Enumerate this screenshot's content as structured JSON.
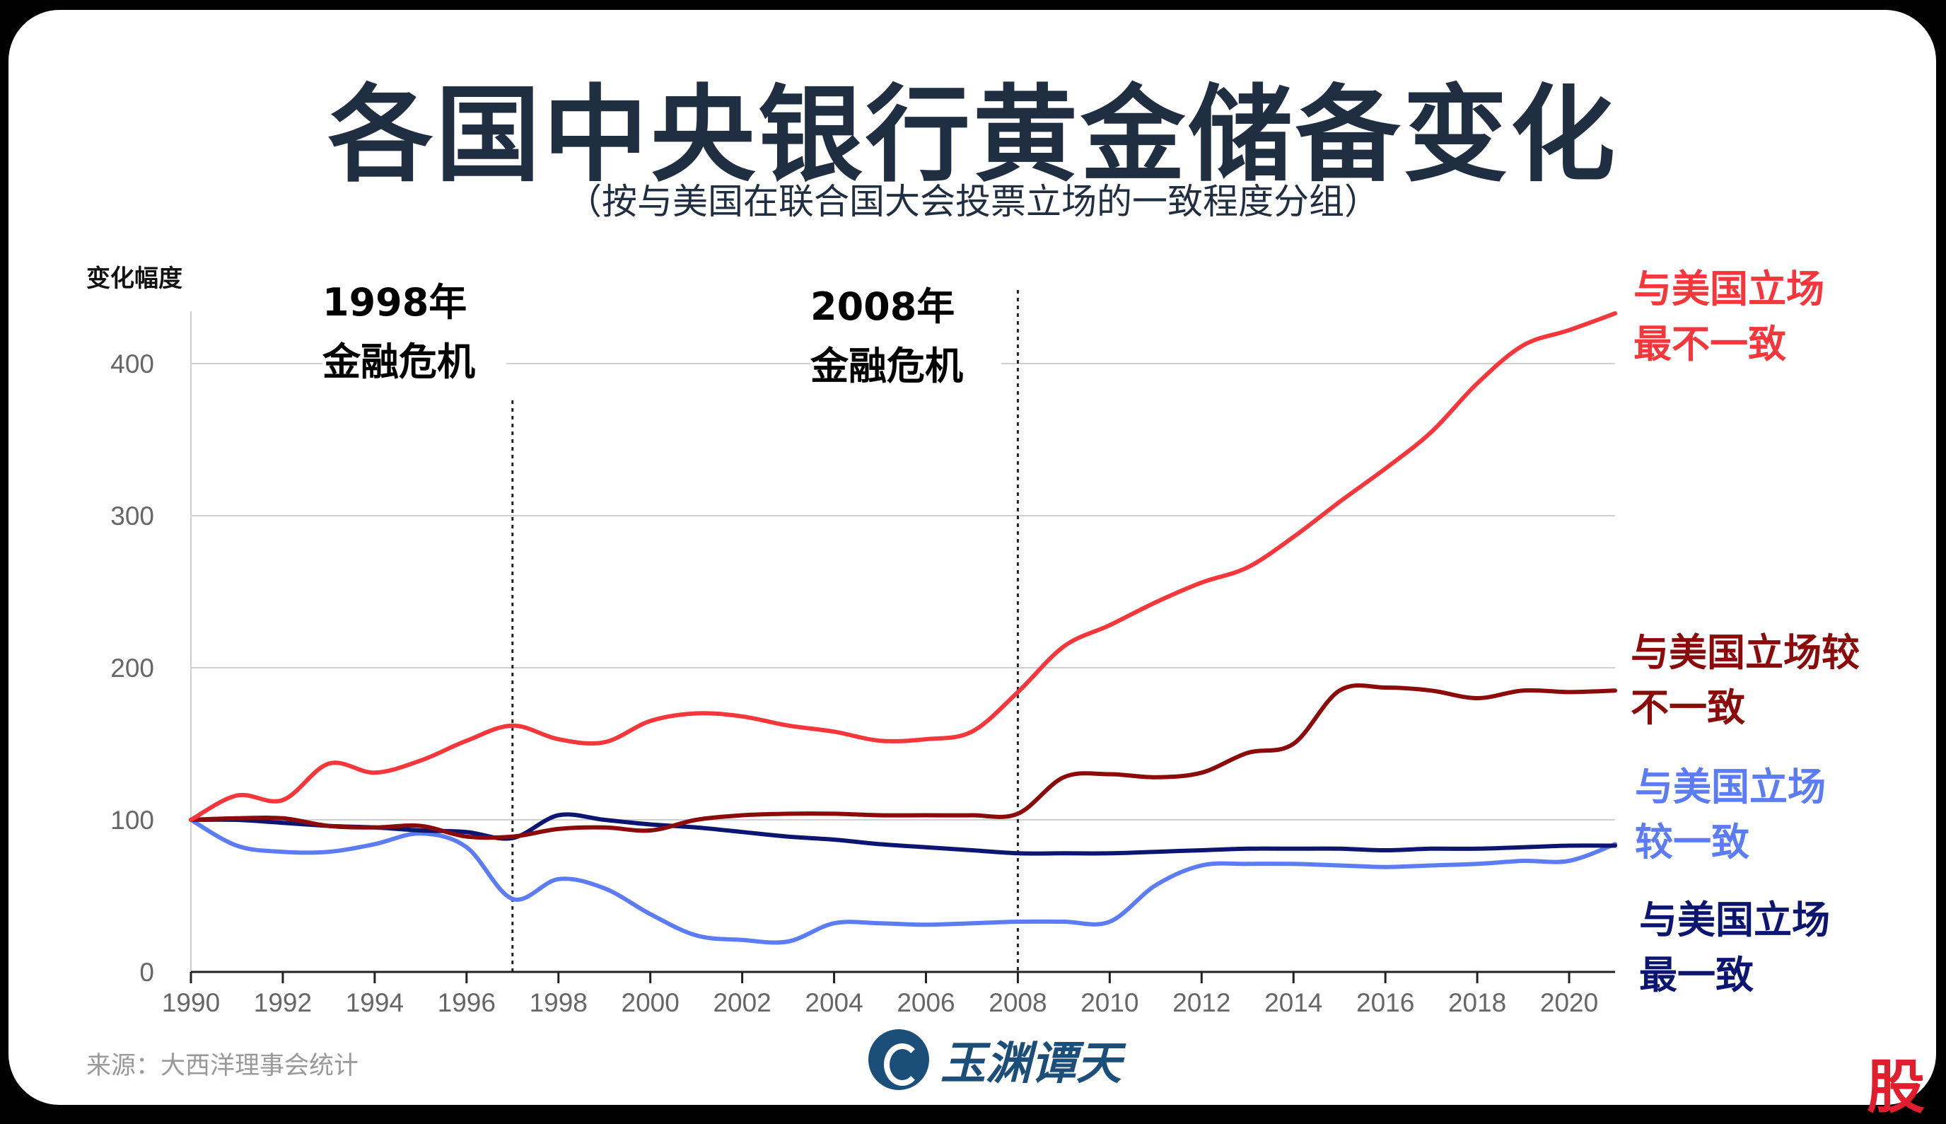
{
  "title": "各国中央银行黄金储备变化",
  "subtitle": "（按与美国在联合国大会投票立场的一致程度分组）",
  "source": "来源：大西洋理事会统计",
  "logo_text": "玉渊谭天",
  "corner_mark": "股",
  "events": [
    {
      "year": 1997,
      "line1": "1998年",
      "line2": "金融危机"
    },
    {
      "year": 2008,
      "line1": "2008年",
      "line2": "金融危机"
    }
  ],
  "chart_data": {
    "type": "line",
    "title": "各国中央银行黄金储备变化",
    "subtitle": "（按与美国在联合国大会投票立场的一致程度分组）",
    "ylabel": "变化幅度",
    "xlabel": "",
    "xlim": [
      1990,
      2021
    ],
    "ylim": [
      0,
      430
    ],
    "x_ticks": [
      "1990",
      "1992",
      "1994",
      "1996",
      "1998",
      "2000",
      "2002",
      "2004",
      "2006",
      "2008",
      "2010",
      "2012",
      "2014",
      "2016",
      "2018",
      "2020"
    ],
    "y_ticks": [
      "0",
      "100",
      "200",
      "300",
      "400"
    ],
    "grid": "horizontal",
    "legend": "direct labels at right",
    "series": [
      {
        "name": "与美国立场最不一致",
        "label_lines": [
          "与美国立场",
          "最不一致"
        ],
        "color": "#f5373b",
        "points": [
          [
            1990,
            100
          ],
          [
            1991,
            116
          ],
          [
            1992,
            113
          ],
          [
            1993,
            137
          ],
          [
            1994,
            131
          ],
          [
            1995,
            139
          ],
          [
            1996,
            152
          ],
          [
            1997,
            162
          ],
          [
            1998,
            153
          ],
          [
            1999,
            151
          ],
          [
            2000,
            165
          ],
          [
            2001,
            170
          ],
          [
            2002,
            168
          ],
          [
            2003,
            162
          ],
          [
            2004,
            158
          ],
          [
            2005,
            152
          ],
          [
            2006,
            153
          ],
          [
            2007,
            158
          ],
          [
            2008,
            184
          ],
          [
            2009,
            214
          ],
          [
            2010,
            228
          ],
          [
            2011,
            243
          ],
          [
            2012,
            256
          ],
          [
            2013,
            266
          ],
          [
            2014,
            286
          ],
          [
            2015,
            309
          ],
          [
            2016,
            331
          ],
          [
            2017,
            355
          ],
          [
            2018,
            387
          ],
          [
            2019,
            412
          ],
          [
            2020,
            422
          ],
          [
            2021,
            433
          ]
        ]
      },
      {
        "name": "与美国立场较不一致",
        "label_lines": [
          "与美国立场较",
          "不一致"
        ],
        "color": "#8b0a0a",
        "points": [
          [
            1990,
            100
          ],
          [
            1991,
            101
          ],
          [
            1992,
            101
          ],
          [
            1993,
            96
          ],
          [
            1994,
            95
          ],
          [
            1995,
            96
          ],
          [
            1996,
            89
          ],
          [
            1997,
            89
          ],
          [
            1998,
            94
          ],
          [
            1999,
            95
          ],
          [
            2000,
            93
          ],
          [
            2001,
            100
          ],
          [
            2002,
            103
          ],
          [
            2003,
            104
          ],
          [
            2004,
            104
          ],
          [
            2005,
            103
          ],
          [
            2006,
            103
          ],
          [
            2007,
            103
          ],
          [
            2008,
            104
          ],
          [
            2009,
            128
          ],
          [
            2010,
            130
          ],
          [
            2011,
            128
          ],
          [
            2012,
            131
          ],
          [
            2013,
            144
          ],
          [
            2014,
            150
          ],
          [
            2015,
            185
          ],
          [
            2016,
            187
          ],
          [
            2017,
            185
          ],
          [
            2018,
            180
          ],
          [
            2019,
            185
          ],
          [
            2020,
            184
          ],
          [
            2021,
            185
          ]
        ]
      },
      {
        "name": "与美国立场较一致",
        "label_lines": [
          "与美国立场",
          "较一致"
        ],
        "color": "#5b7cf3",
        "points": [
          [
            1990,
            100
          ],
          [
            1991,
            83
          ],
          [
            1992,
            79
          ],
          [
            1993,
            79
          ],
          [
            1994,
            84
          ],
          [
            1995,
            91
          ],
          [
            1996,
            82
          ],
          [
            1997,
            48
          ],
          [
            1998,
            61
          ],
          [
            1999,
            55
          ],
          [
            2000,
            38
          ],
          [
            2001,
            24
          ],
          [
            2002,
            21
          ],
          [
            2003,
            20
          ],
          [
            2004,
            32
          ],
          [
            2005,
            32
          ],
          [
            2006,
            31
          ],
          [
            2007,
            32
          ],
          [
            2008,
            33
          ],
          [
            2009,
            33
          ],
          [
            2010,
            33
          ],
          [
            2011,
            57
          ],
          [
            2012,
            70
          ],
          [
            2013,
            71
          ],
          [
            2014,
            71
          ],
          [
            2015,
            70
          ],
          [
            2016,
            69
          ],
          [
            2017,
            70
          ],
          [
            2018,
            71
          ],
          [
            2019,
            73
          ],
          [
            2020,
            73
          ],
          [
            2021,
            84
          ]
        ]
      },
      {
        "name": "与美国立场最一致",
        "label_lines": [
          "与美国立场",
          "最一致"
        ],
        "color": "#0c1670",
        "points": [
          [
            1990,
            100
          ],
          [
            1991,
            100
          ],
          [
            1992,
            98
          ],
          [
            1993,
            96
          ],
          [
            1994,
            95
          ],
          [
            1995,
            93
          ],
          [
            1996,
            92
          ],
          [
            1997,
            88
          ],
          [
            1998,
            103
          ],
          [
            1999,
            100
          ],
          [
            2000,
            97
          ],
          [
            2001,
            95
          ],
          [
            2002,
            92
          ],
          [
            2003,
            89
          ],
          [
            2004,
            87
          ],
          [
            2005,
            84
          ],
          [
            2006,
            82
          ],
          [
            2007,
            80
          ],
          [
            2008,
            78
          ],
          [
            2009,
            78
          ],
          [
            2010,
            78
          ],
          [
            2011,
            79
          ],
          [
            2012,
            80
          ],
          [
            2013,
            81
          ],
          [
            2014,
            81
          ],
          [
            2015,
            81
          ],
          [
            2016,
            80
          ],
          [
            2017,
            81
          ],
          [
            2018,
            81
          ],
          [
            2019,
            82
          ],
          [
            2020,
            83
          ],
          [
            2021,
            83
          ]
        ]
      }
    ]
  }
}
